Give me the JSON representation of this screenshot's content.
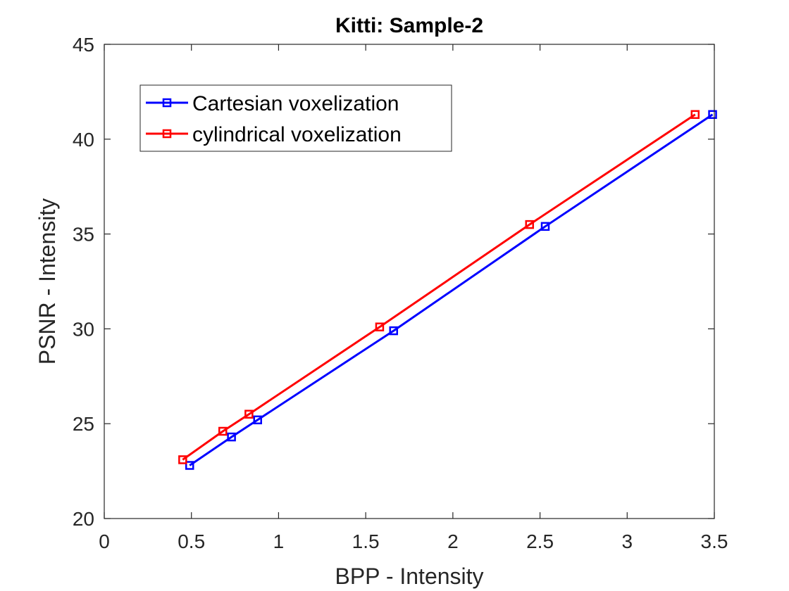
{
  "chart_data": {
    "type": "line",
    "title": "Kitti: Sample-2",
    "xlabel": "BPP - Intensity",
    "ylabel": "PSNR - Intensity",
    "xlim": [
      0,
      3.5
    ],
    "ylim": [
      20,
      45
    ],
    "xticks": [
      0,
      0.5,
      1,
      1.5,
      2,
      2.5,
      3,
      3.5
    ],
    "xtick_labels": [
      "0",
      "0.5",
      "1",
      "1.5",
      "2",
      "2.5",
      "3",
      "3.5"
    ],
    "yticks": [
      20,
      25,
      30,
      35,
      40,
      45
    ],
    "ytick_labels": [
      "20",
      "25",
      "30",
      "35",
      "40",
      "45"
    ],
    "grid": false,
    "legend_position": "top-left",
    "series": [
      {
        "name": "Cartesian voxelization",
        "color": "#0000ff",
        "marker": "square",
        "x": [
          0.49,
          0.73,
          0.88,
          1.66,
          2.53,
          3.49
        ],
        "y": [
          22.8,
          24.3,
          25.2,
          29.9,
          35.4,
          41.3
        ]
      },
      {
        "name": "cylindrical voxelization",
        "color": "#ff0000",
        "marker": "square",
        "x": [
          0.45,
          0.68,
          0.83,
          1.58,
          2.44,
          3.39
        ],
        "y": [
          23.1,
          24.6,
          25.5,
          30.1,
          35.5,
          41.3
        ]
      }
    ]
  }
}
